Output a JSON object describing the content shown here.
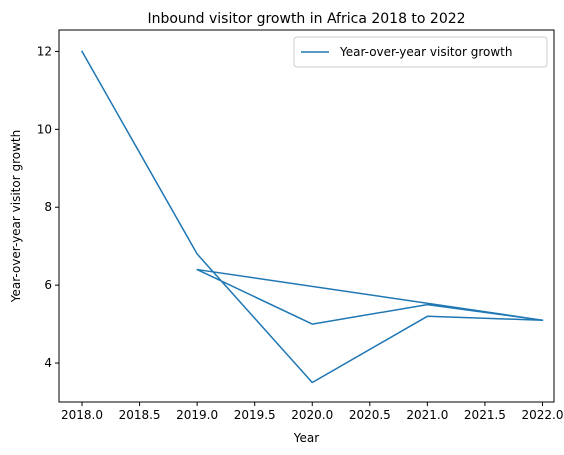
{
  "chart_data": {
    "type": "line",
    "title": "Inbound visitor growth in Africa 2018 to 2022",
    "xlabel": "Year",
    "ylabel": "Year-over-year visitor growth",
    "xlim": [
      2017.8,
      2022.1
    ],
    "ylim": [
      3.0,
      12.55
    ],
    "xticks": [
      2018.0,
      2018.5,
      2019.0,
      2019.5,
      2020.0,
      2020.5,
      2021.0,
      2021.5,
      2022.0
    ],
    "xtick_labels": [
      "2018.0",
      "2018.5",
      "2019.0",
      "2019.5",
      "2020.0",
      "2020.5",
      "2021.0",
      "2021.5",
      "2022.0"
    ],
    "yticks": [
      4,
      6,
      8,
      10,
      12
    ],
    "ytick_labels": [
      "4",
      "6",
      "8",
      "10",
      "12"
    ],
    "grid": false,
    "legend": "top-right",
    "series": [
      {
        "name": "Year-over-year visitor growth",
        "color": "#1f77b4",
        "x": [
          2018,
          2019,
          2020,
          2021,
          2022,
          2019,
          2020,
          2021,
          2022
        ],
        "y": [
          12.0,
          6.8,
          3.5,
          5.2,
          5.1,
          6.4,
          5.0,
          5.5,
          5.1
        ]
      }
    ]
  }
}
